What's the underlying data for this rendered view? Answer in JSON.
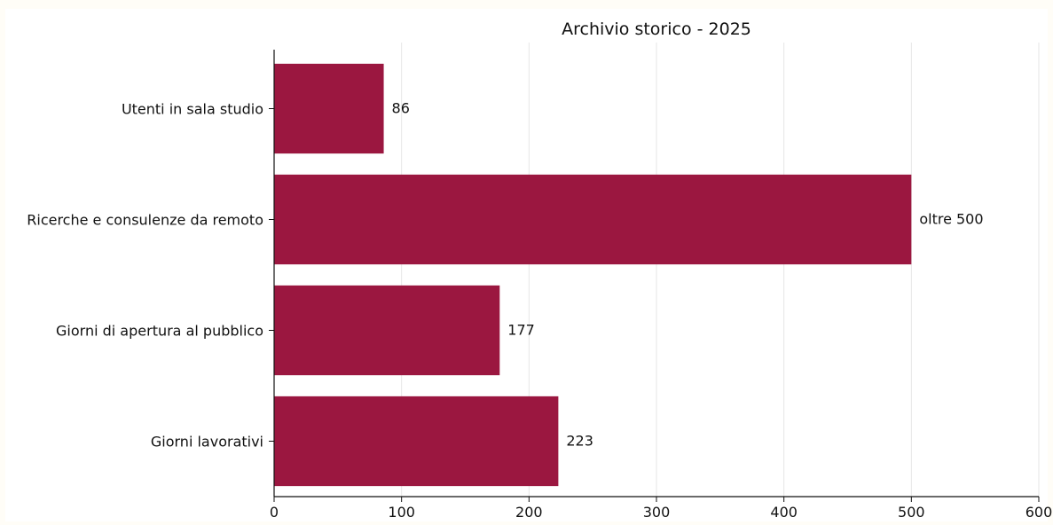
{
  "chart_data": {
    "type": "bar",
    "orientation": "horizontal",
    "title": "Archivio storico - 2025",
    "xlabel": "",
    "ylabel": "",
    "categories": [
      "Utenti in sala studio",
      "Ricerche e consulenze da remoto",
      "Giorni di apertura al pubblico",
      "Giorni lavorativi"
    ],
    "values": [
      86,
      500,
      177,
      223
    ],
    "data_labels": [
      "86",
      "oltre 500",
      "177",
      "223"
    ],
    "xlim": [
      0,
      600
    ],
    "xticks": [
      0,
      100,
      200,
      300,
      400,
      500,
      600
    ],
    "xtick_labels": [
      "0",
      "100",
      "200",
      "300",
      "400",
      "500",
      "600"
    ],
    "grid": "vertical",
    "legend": "none",
    "colors": {
      "bar": "#9b1740",
      "grid": "#e6e6e6",
      "axis": "#111111",
      "background": "#fffdf7"
    }
  }
}
